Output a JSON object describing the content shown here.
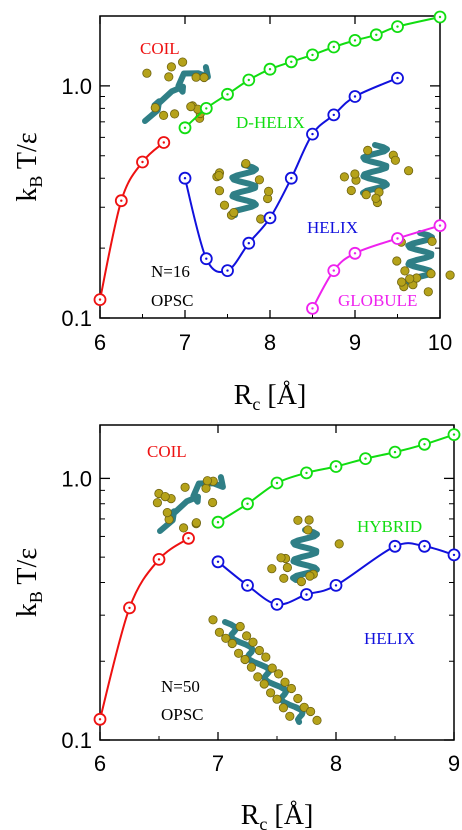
{
  "chart_data": [
    {
      "type": "line",
      "xlabel": "R_c [Å]",
      "ylabel": "k_B T/ε",
      "xlim": [
        6,
        10
      ],
      "ylim": [
        0.1,
        2.0
      ],
      "yscale": "log",
      "xticks": [
        6,
        7,
        8,
        9,
        10
      ],
      "yticks": [
        0.1,
        1.0
      ],
      "xtick_labels": [
        "6",
        "7",
        "8",
        "9",
        "10"
      ],
      "ytick_labels": [
        "0.1",
        "1.0"
      ],
      "annotations": [
        "N=16",
        "OPSC"
      ],
      "series": [
        {
          "name": "COIL",
          "color": "#ee1111",
          "x": [
            6.0,
            6.25,
            6.5,
            6.75
          ],
          "y": [
            0.12,
            0.32,
            0.47,
            0.57
          ]
        },
        {
          "name": "D-HELIX",
          "color": "#11dd11",
          "x": [
            7.0,
            7.25,
            7.5,
            7.75,
            8.0,
            8.25,
            8.5,
            8.75,
            9.0,
            9.25,
            9.5,
            10.0
          ],
          "y": [
            0.66,
            0.8,
            0.92,
            1.06,
            1.18,
            1.27,
            1.36,
            1.47,
            1.57,
            1.66,
            1.8,
            1.98
          ]
        },
        {
          "name": "HELIX",
          "color": "#1111dd",
          "x": [
            7.0,
            7.25,
            7.5,
            7.75,
            8.0,
            8.25,
            8.5,
            8.75,
            9.0,
            9.5
          ],
          "y": [
            0.4,
            0.18,
            0.16,
            0.21,
            0.27,
            0.4,
            0.62,
            0.75,
            0.9,
            1.08
          ]
        },
        {
          "name": "GLOBULE",
          "color": "#ee22ee",
          "x": [
            8.5,
            8.75,
            9.0,
            9.5,
            10.0
          ],
          "y": [
            0.11,
            0.16,
            0.19,
            0.22,
            0.25
          ]
        }
      ]
    },
    {
      "type": "line",
      "xlabel": "R_c [Å]",
      "ylabel": "k_B T/ε",
      "xlim": [
        6,
        9
      ],
      "ylim": [
        0.1,
        1.6
      ],
      "yscale": "log",
      "xticks": [
        6,
        7,
        8,
        9
      ],
      "yticks": [
        0.1,
        1.0
      ],
      "xtick_labels": [
        "6",
        "7",
        "8",
        "9"
      ],
      "ytick_labels": [
        "0.1",
        "1.0"
      ],
      "annotations": [
        "N=50",
        "OPSC"
      ],
      "series": [
        {
          "name": "COIL",
          "color": "#ee1111",
          "x": [
            6.0,
            6.25,
            6.5,
            6.75
          ],
          "y": [
            0.12,
            0.32,
            0.49,
            0.59
          ]
        },
        {
          "name": "HYBRID",
          "color": "#11dd11",
          "x": [
            7.0,
            7.25,
            7.5,
            7.75,
            8.0,
            8.25,
            8.5,
            8.75,
            9.0
          ],
          "y": [
            0.68,
            0.8,
            0.96,
            1.05,
            1.11,
            1.19,
            1.26,
            1.35,
            1.47
          ]
        },
        {
          "name": "HELIX",
          "color": "#1111dd",
          "x": [
            7.0,
            7.25,
            7.5,
            7.75,
            8.0,
            8.5,
            8.75,
            9.0
          ],
          "y": [
            0.48,
            0.39,
            0.33,
            0.36,
            0.39,
            0.55,
            0.55,
            0.51
          ]
        }
      ]
    }
  ]
}
